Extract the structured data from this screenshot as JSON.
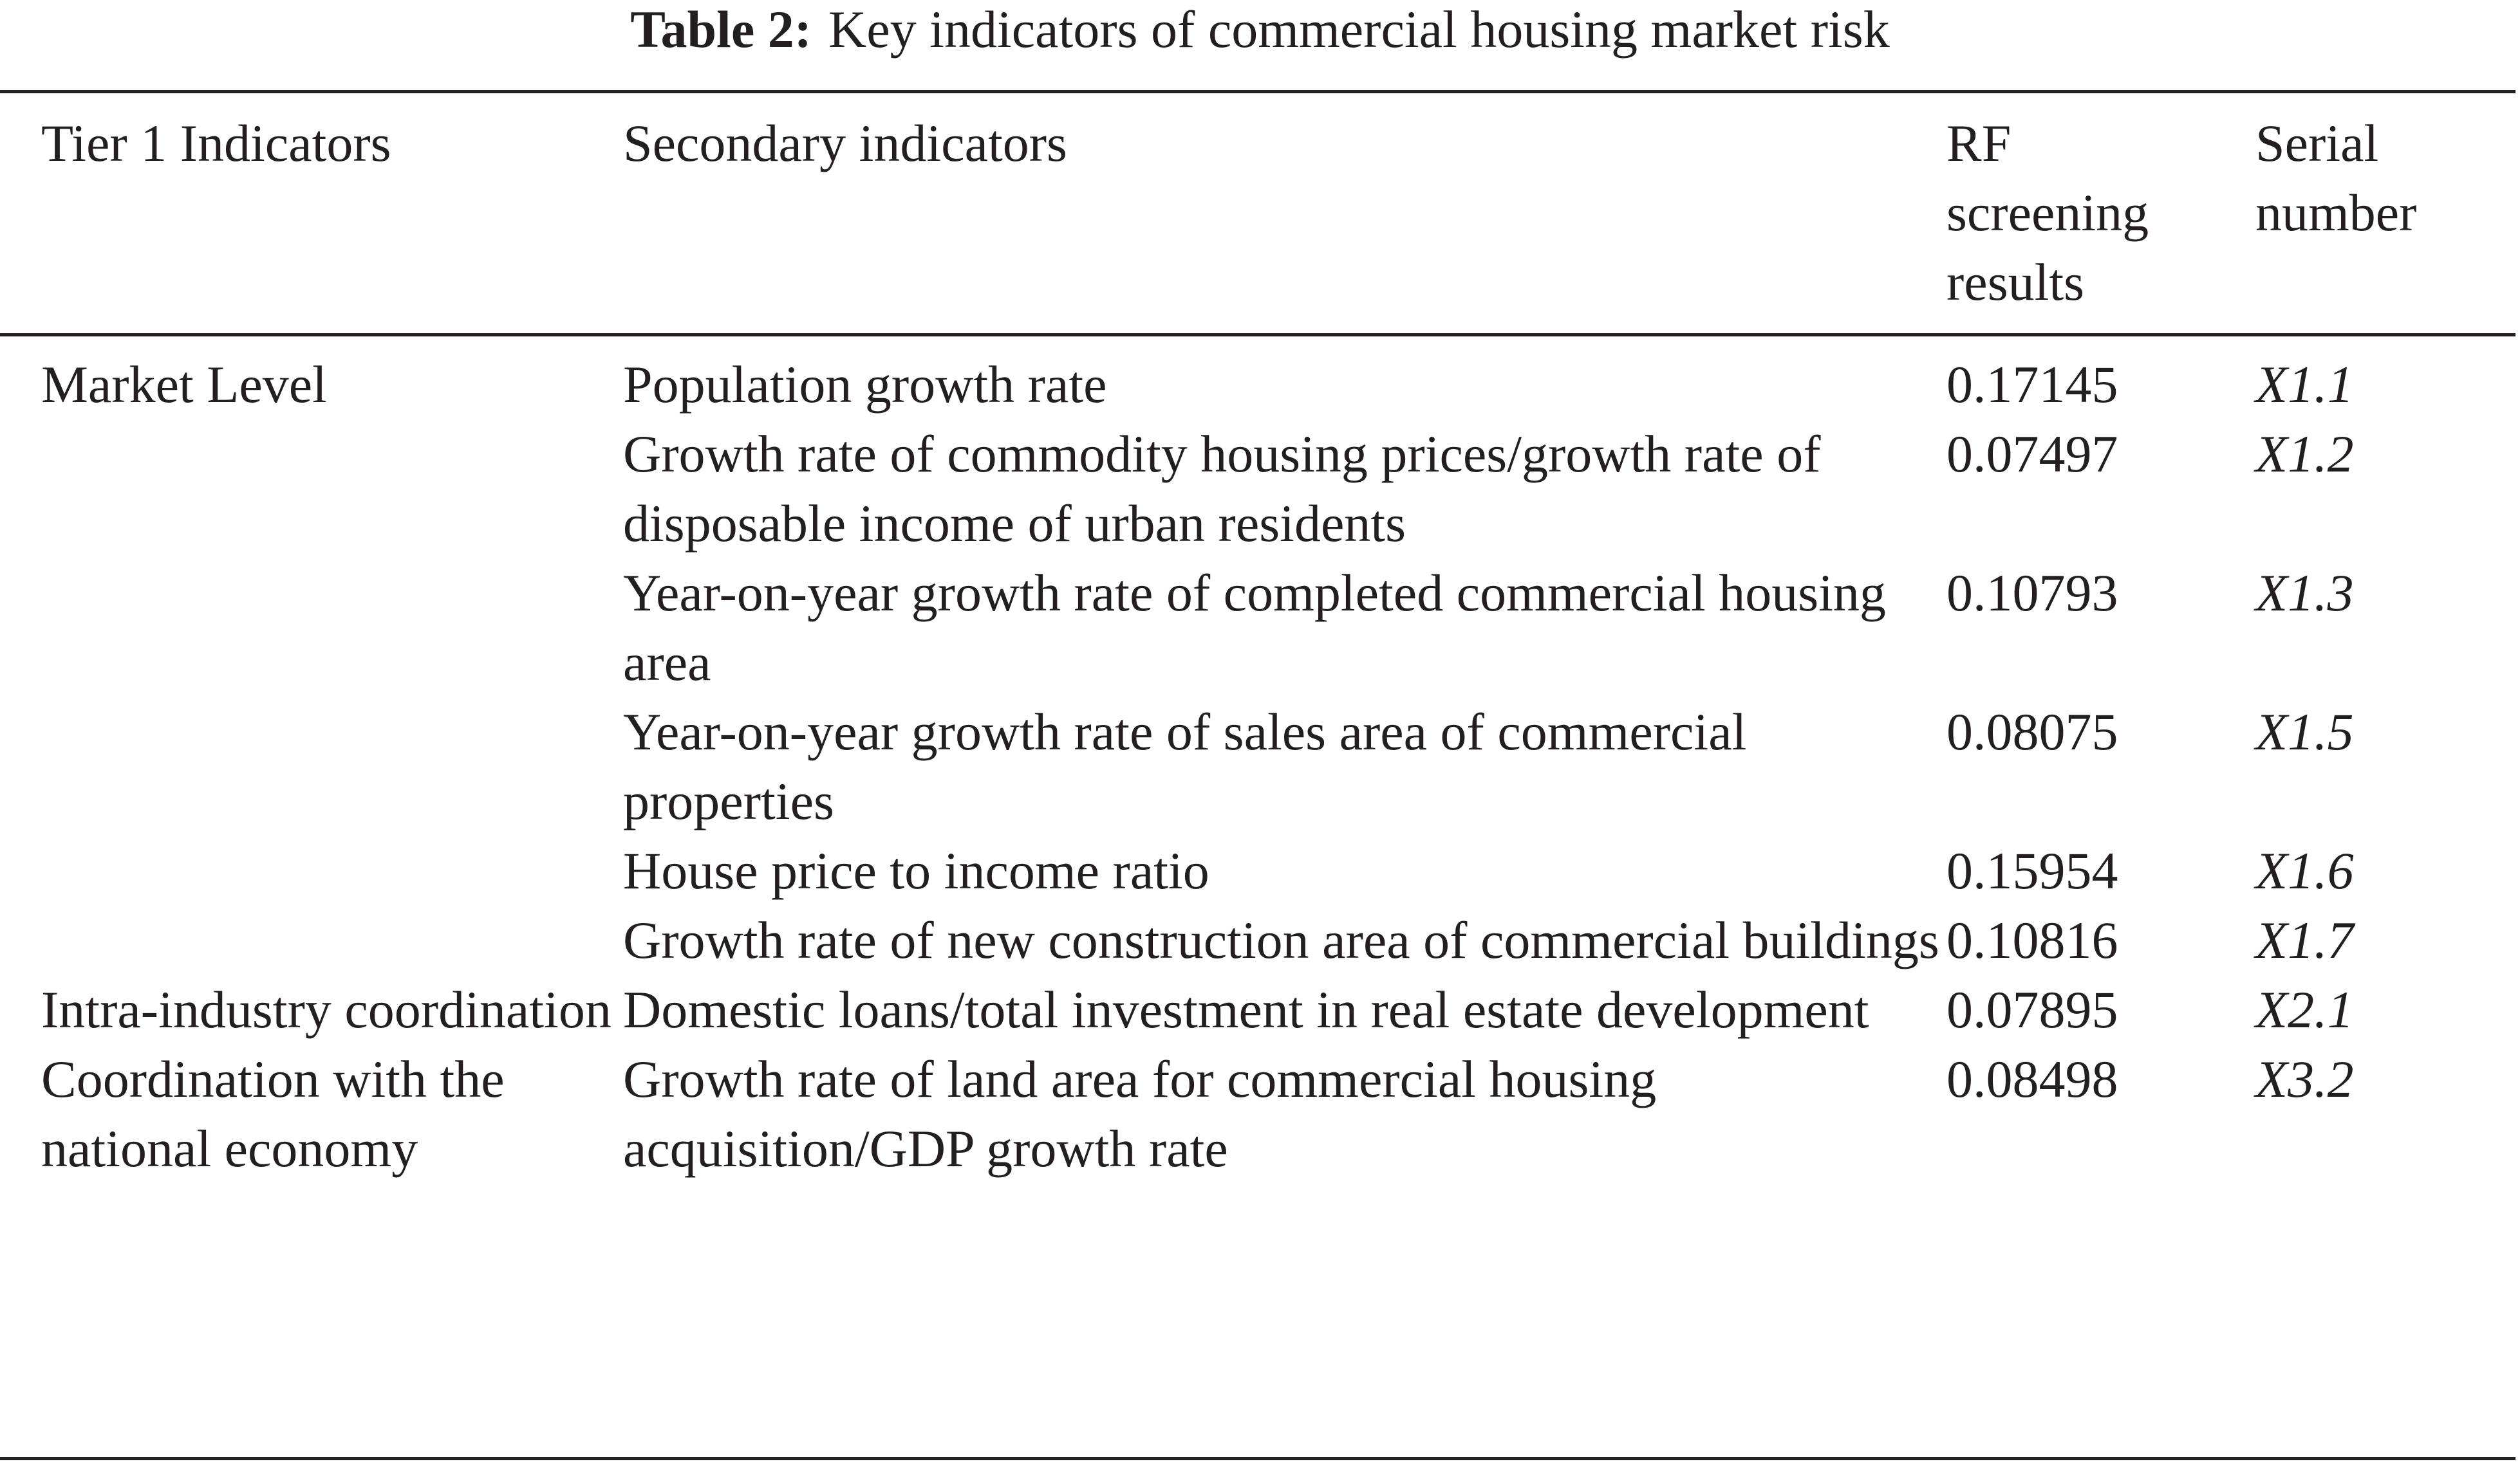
{
  "caption": {
    "label": "Table 2:",
    "title": "Key indicators of commercial housing market risk"
  },
  "table": {
    "headers": [
      "Tier 1 Indicators",
      "Secondary indicators",
      "RF screening results",
      "Serial number"
    ],
    "rows": [
      {
        "tier1": "Market Level",
        "secondary": "Population growth rate",
        "rf": "0.17145",
        "serial": "X1.1"
      },
      {
        "tier1": "",
        "secondary": "Growth rate of commodity housing prices/growth rate of disposable income of urban residents",
        "rf": "0.07497",
        "serial": "X1.2"
      },
      {
        "tier1": "",
        "secondary": "Year-on-year growth rate of completed commercial housing area",
        "rf": "0.10793",
        "serial": "X1.3"
      },
      {
        "tier1": "",
        "secondary": "Year-on-year growth rate of sales area of commercial properties",
        "rf": "0.08075",
        "serial": "X1.5"
      },
      {
        "tier1": "",
        "secondary": "House price to income ratio",
        "rf": "0.15954",
        "serial": "X1.6"
      },
      {
        "tier1": "",
        "secondary": "Growth rate of new construction area of commercial buildings",
        "rf": "0.10816",
        "serial": "X1.7"
      },
      {
        "tier1": "Intra-industry coordination",
        "secondary": "Domestic loans/total investment in real estate development",
        "rf": "0.07895",
        "serial": "X2.1"
      },
      {
        "tier1": "Coordination with the national economy",
        "secondary": "Growth rate of land area for commercial housing acquisition/GDP growth rate",
        "rf": "0.08498",
        "serial": "X3.2"
      }
    ]
  }
}
